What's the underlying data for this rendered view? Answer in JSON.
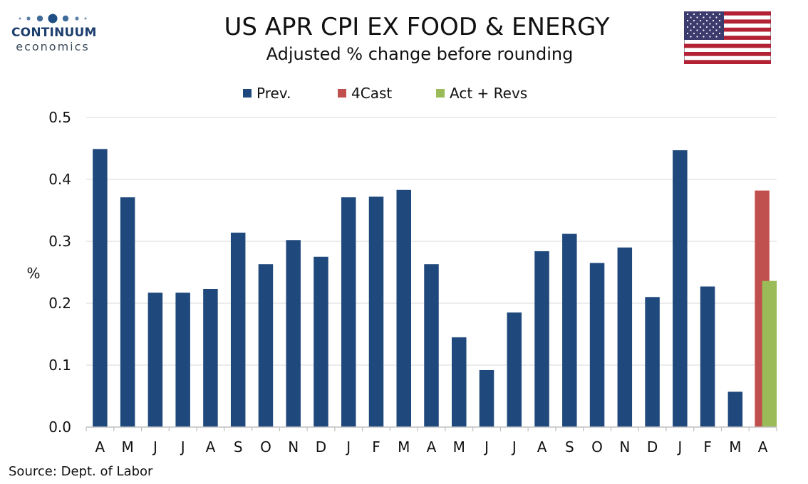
{
  "logo": {
    "name": "CONTINUUM",
    "sub": "economics",
    "color": "#1d3f6e"
  },
  "source": "Source: Dept. of Labor",
  "colors": {
    "prev": "#1f497d",
    "forecast": "#c0504d",
    "actual": "#9bbb59",
    "grid": "#d9d9d9",
    "axis": "#bfbfbf"
  },
  "chart_data": {
    "type": "bar",
    "title": "US APR CPI EX FOOD & ENERGY",
    "subtitle": "Adjusted % change before rounding",
    "xlabel": "",
    "ylabel": "%",
    "ylim": [
      0,
      0.5
    ],
    "yticks": [
      "0.0",
      "0.1",
      "0.2",
      "0.3",
      "0.4",
      "0.5"
    ],
    "grid": true,
    "legend_position": "top-center",
    "legend": [
      "Prev.",
      "4Cast",
      "Act + Revs"
    ],
    "categories": [
      "A",
      "M",
      "J",
      "J",
      "A",
      "S",
      "O",
      "N",
      "D",
      "J",
      "F",
      "M",
      "A",
      "M",
      "J",
      "J",
      "A",
      "S",
      "O",
      "N",
      "D",
      "J",
      "F",
      "M",
      "A"
    ],
    "series": [
      {
        "name": "Prev.",
        "values": [
          0.449,
          0.371,
          0.217,
          0.217,
          0.223,
          0.314,
          0.263,
          0.302,
          0.275,
          0.371,
          0.372,
          0.383,
          0.263,
          0.145,
          0.092,
          0.185,
          0.284,
          0.312,
          0.265,
          0.29,
          0.21,
          0.447,
          0.227,
          0.057,
          null
        ]
      },
      {
        "name": "4Cast",
        "values": [
          null,
          null,
          null,
          null,
          null,
          null,
          null,
          null,
          null,
          null,
          null,
          null,
          null,
          null,
          null,
          null,
          null,
          null,
          null,
          null,
          null,
          null,
          null,
          null,
          0.382
        ]
      },
      {
        "name": "Act + Revs",
        "values": [
          null,
          null,
          null,
          null,
          null,
          null,
          null,
          null,
          null,
          null,
          null,
          null,
          null,
          null,
          null,
          null,
          null,
          null,
          null,
          null,
          null,
          null,
          null,
          null,
          0.236
        ]
      }
    ]
  }
}
